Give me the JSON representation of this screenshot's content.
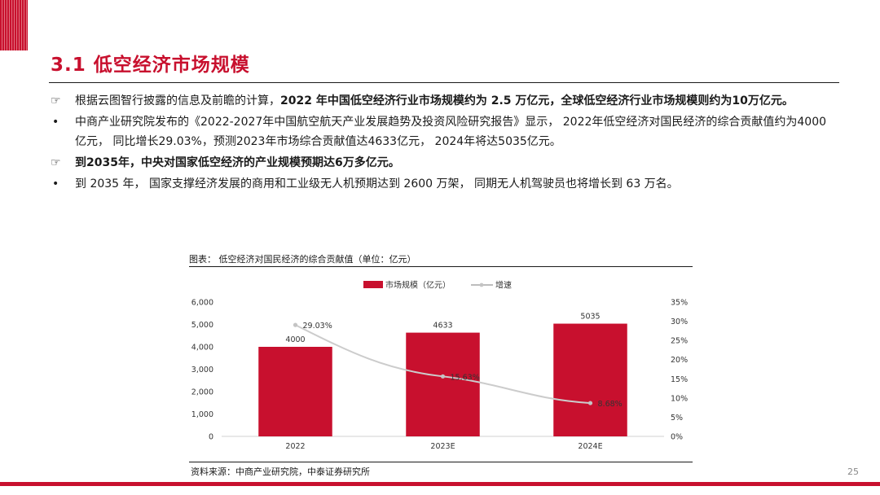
{
  "page": {
    "title": "3.1 低空经济市场规模",
    "number": "25"
  },
  "bullets": [
    {
      "marker": "☞",
      "parts": [
        {
          "t": "根据云图智行披露的信息及前瞻的计算，",
          "b": false
        },
        {
          "t": "2022 年中国低空经济行业市场规模约为 2.5 万亿元，全球低空经济行业市场规模则约为10万亿元。",
          "b": true
        }
      ]
    },
    {
      "marker": "•",
      "parts": [
        {
          "t": "中商产业研究院发布的《2022-2027年中国航空航天产业发展趋势及投资风险研究报告》显示， 2022年低空经济对国民经济的综合贡献值约为4000亿元， 同比增长29.03%，预测2023年市场综合贡献值达4633亿元， 2024年将达5035亿元。",
          "b": false
        }
      ]
    },
    {
      "marker": "☞",
      "parts": [
        {
          "t": "到2035年，中央对国家低空经济的产业规模预期达6万多亿元。",
          "b": true
        }
      ]
    },
    {
      "marker": "•",
      "parts": [
        {
          "t": "到 2035 年， 国家支撑经济发展的商用和工业级无人机预期达到 2600 万架， 同期无人机驾驶员也将增长到 63 万名。",
          "b": false
        }
      ]
    }
  ],
  "chart": {
    "caption": "图表： 低空经济对国民经济的综合贡献值（单位：亿元）",
    "source": "资料来源：中商产业研究院，中泰证券研究所"
  },
  "chart_data": {
    "type": "bar",
    "categories": [
      "2022",
      "2023E",
      "2024E"
    ],
    "series": [
      {
        "name": "市场规模（亿元）",
        "kind": "bar",
        "axis": "left",
        "color": "#c8102e",
        "values": [
          4000,
          4633,
          5035
        ],
        "labels": [
          "4000",
          "4633",
          "5035"
        ]
      },
      {
        "name": "增速",
        "kind": "line",
        "axis": "right",
        "color": "#cccccc",
        "values": [
          29.03,
          15.63,
          8.68
        ],
        "labels": [
          "29.03%",
          "15.63%",
          "8.68%"
        ]
      }
    ],
    "y_left": {
      "min": 0,
      "max": 6000,
      "ticks": [
        0,
        1000,
        2000,
        3000,
        4000,
        5000,
        6000
      ],
      "tick_labels": [
        "0",
        "1,000",
        "2,000",
        "3,000",
        "4,000",
        "5,000",
        "6,000"
      ]
    },
    "y_right": {
      "min": 0,
      "max": 35,
      "ticks": [
        0,
        5,
        10,
        15,
        20,
        25,
        30,
        35
      ],
      "tick_labels": [
        "0%",
        "5%",
        "10%",
        "15%",
        "20%",
        "25%",
        "30%",
        "35%"
      ]
    },
    "legend_position": "top-center",
    "grid": false
  }
}
